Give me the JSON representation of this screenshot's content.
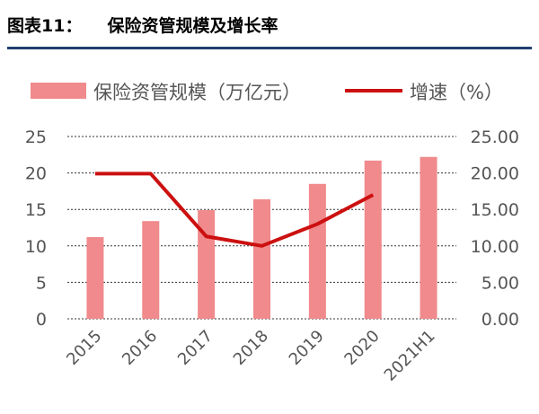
{
  "figure": {
    "label": "图表11：",
    "title": "保险资管规模及增长率"
  },
  "colors": {
    "bar": "#f08a8c",
    "line": "#cc1010",
    "rule": "#1f3f6e",
    "grid": "#333333",
    "text": "#555555"
  },
  "chart_data": {
    "type": "bar+line",
    "categories": [
      "2015",
      "2016",
      "2017",
      "2018",
      "2019",
      "2020",
      "2021H1"
    ],
    "series": [
      {
        "name": "保险资管规模（万亿元）",
        "type": "bar",
        "axis": "left",
        "values": [
          11.2,
          13.4,
          14.9,
          16.4,
          18.5,
          21.7,
          22.2
        ]
      },
      {
        "name": "增速（%）",
        "type": "line",
        "axis": "right",
        "values": [
          19.9,
          19.9,
          11.3,
          10.0,
          13.0,
          17.0,
          null
        ]
      }
    ],
    "left_axis": {
      "min": 0,
      "max": 25,
      "ticks": [
        "0",
        "5",
        "10",
        "15",
        "20",
        "25"
      ]
    },
    "right_axis": {
      "min": 0,
      "max": 25,
      "ticks": [
        "0.00",
        "5.00",
        "10.00",
        "15.00",
        "20.00",
        "25.00"
      ]
    },
    "legend": [
      "保险资管规模（万亿元）",
      "增速（%）"
    ],
    "grid": "dashed horizontal"
  }
}
